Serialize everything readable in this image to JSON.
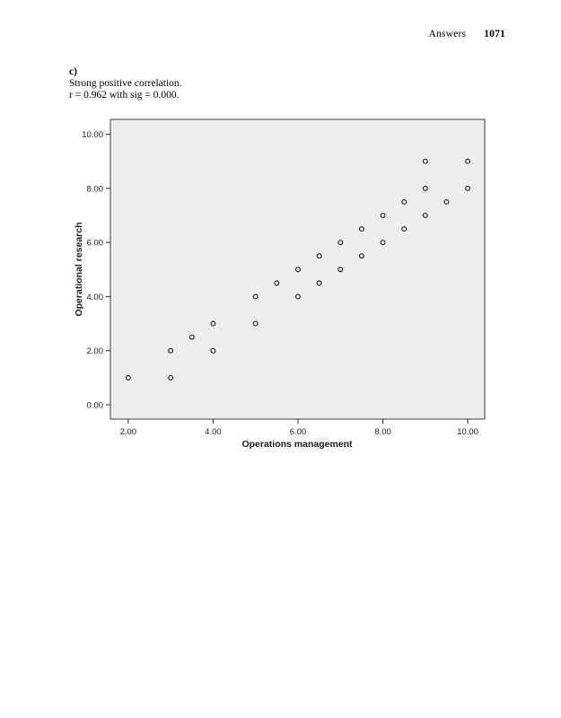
{
  "header": {
    "section_label": "Answers",
    "page_number": "1071"
  },
  "answer": {
    "item_label": "c)",
    "line1": "Strong positive correlation.",
    "line2": "r = 0.962 with sig = 0.000."
  },
  "colors": {
    "plot_bg": "#ededed",
    "frame": "#3c3c3c",
    "tick": "#2a2a2a",
    "tick_label": "#1a1a1a",
    "marker_stroke": "#1a1a1a"
  },
  "chart_data": {
    "type": "scatter",
    "title": "",
    "xlabel": "Operations management",
    "ylabel": "Operational research",
    "x_ticks": [
      2,
      4,
      6,
      8,
      10
    ],
    "y_ticks": [
      0,
      2,
      4,
      6,
      8,
      10
    ],
    "x_tick_labels": [
      "2.00",
      "4.00",
      "6.00",
      "8.00",
      "10.00"
    ],
    "y_tick_labels": [
      "0.00",
      "2.00",
      "4.00",
      "6.00",
      "8.00",
      "10.00"
    ],
    "xlim": [
      1.58,
      10.4
    ],
    "ylim": [
      -0.53,
      10.55
    ],
    "grid": false,
    "legend": false,
    "marker": "open-circle",
    "points": [
      [
        2,
        1
      ],
      [
        3,
        1
      ],
      [
        3,
        2
      ],
      [
        3.5,
        2.5
      ],
      [
        4,
        2
      ],
      [
        4,
        3
      ],
      [
        5,
        3
      ],
      [
        5,
        4
      ],
      [
        5.5,
        4.5
      ],
      [
        6,
        4
      ],
      [
        6,
        5
      ],
      [
        6.5,
        4.5
      ],
      [
        6.5,
        5.5
      ],
      [
        7,
        5
      ],
      [
        7,
        6
      ],
      [
        7.5,
        5.5
      ],
      [
        7.5,
        6.5
      ],
      [
        8,
        6
      ],
      [
        8,
        7
      ],
      [
        8.5,
        6.5
      ],
      [
        8.5,
        7.5
      ],
      [
        9,
        7
      ],
      [
        9,
        8
      ],
      [
        9,
        9
      ],
      [
        9.5,
        7.5
      ],
      [
        10,
        8
      ],
      [
        10,
        9
      ]
    ]
  }
}
